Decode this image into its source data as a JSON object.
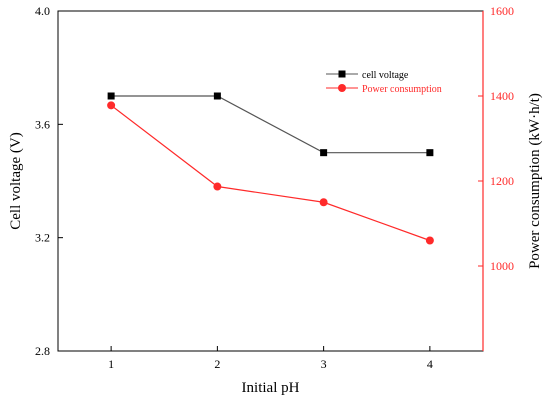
{
  "chart_data": {
    "type": "line",
    "title": "",
    "x": [
      1,
      2,
      3,
      4
    ],
    "xlabel": "Initial pH",
    "xticks": [
      "1",
      "2",
      "3",
      "4"
    ],
    "xlim": [
      0.5,
      4.5
    ],
    "y_left": {
      "label": "Cell voltage (V)",
      "lim": [
        2.8,
        4.0
      ],
      "ticks": [
        "2.8",
        "3.2",
        "3.6",
        "4.0"
      ],
      "color": "#000000"
    },
    "y_right": {
      "label": "Power consumption (kW·h/t)",
      "lim": [
        800,
        1600
      ],
      "ticks": [
        "1000",
        "1200",
        "1400",
        "1600"
      ],
      "color": "#ff2a2a"
    },
    "series": [
      {
        "name": "cell voltage",
        "axis": "left",
        "marker": "square",
        "color": "#000000",
        "line_color": "#555555",
        "values": [
          3.7,
          3.7,
          3.5,
          3.5
        ]
      },
      {
        "name": "Power consumption",
        "axis": "right",
        "marker": "circle",
        "color": "#ff2a2a",
        "line_color": "#ff2a2a",
        "values": [
          1378,
          1187,
          1150,
          1060
        ]
      }
    ],
    "legend": "top-right",
    "grid": false
  }
}
